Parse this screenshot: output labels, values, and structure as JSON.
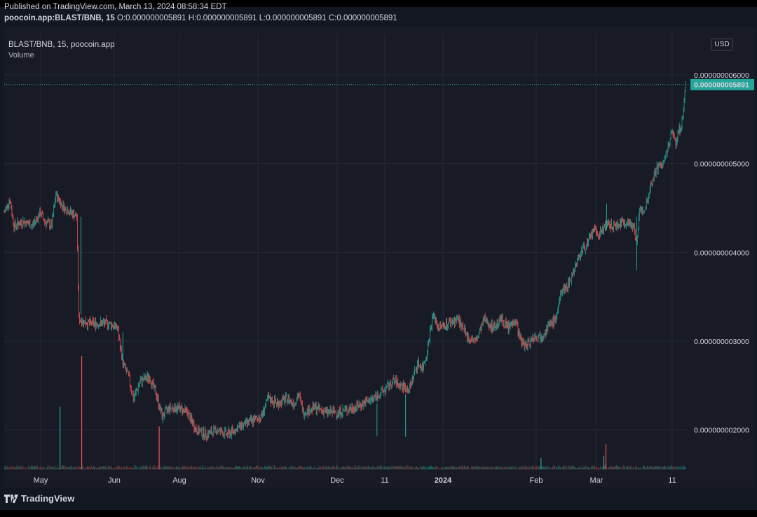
{
  "header": {
    "published": "Published on TradingView.com, March 13, 2024 08:58:34 EDT",
    "symbol": "poocoin.app:BLAST/BNB, 15",
    "ohlc": "O:0.000000005891 H:0.000000005891 L:0.000000005891 C:0.000000005891"
  },
  "legend": {
    "title": "BLAST/BNB, 15, poocoin.app",
    "volume": "Volume"
  },
  "currency": "USD",
  "branding": "TradingView",
  "colors": {
    "up": "#26a69a",
    "down": "#ef5350",
    "background": "#181b26",
    "grid": "#242838",
    "last_price": "#26a69a"
  },
  "chart_data": {
    "type": "candlestick",
    "series_name": "BLAST/BNB, 15",
    "last_price": 5.891e-09,
    "last_price_label": "0.000000005891",
    "y_ticks": [
      2e-09,
      3e-09,
      4e-09,
      5e-09,
      6e-09
    ],
    "y_tick_labels": [
      "0.000000002000",
      "0.000000003000",
      "0.000000004000",
      "0.000000005000",
      "0.000000006000"
    ],
    "x_ticks": [
      "May",
      "Jun",
      "Aug",
      "Nov",
      "Dec",
      "11",
      "2024",
      "Feb",
      "Mar",
      "11"
    ],
    "x_ticks_bold": [
      "2024"
    ],
    "y_range": [
      1.54e-09,
      6.37e-09
    ],
    "price_path": [
      {
        "i": 0,
        "v": 4.45e-09
      },
      {
        "i": 8,
        "v": 4.6e-09
      },
      {
        "i": 14,
        "v": 4.3e-09
      },
      {
        "i": 28,
        "v": 4.35e-09
      },
      {
        "i": 40,
        "v": 4.3e-09
      },
      {
        "i": 52,
        "v": 4.45e-09
      },
      {
        "i": 58,
        "v": 4.35e-09
      },
      {
        "i": 68,
        "v": 4.3e-09
      },
      {
        "i": 74,
        "v": 4.65e-09
      },
      {
        "i": 86,
        "v": 4.5e-09
      },
      {
        "i": 96,
        "v": 4.45e-09
      },
      {
        "i": 104,
        "v": 4.4e-09
      },
      {
        "i": 107,
        "v": 3.25e-09
      },
      {
        "i": 120,
        "v": 3.2e-09
      },
      {
        "i": 135,
        "v": 3.2e-09
      },
      {
        "i": 150,
        "v": 3.2e-09
      },
      {
        "i": 162,
        "v": 3.15e-09
      },
      {
        "i": 170,
        "v": 2.75e-09
      },
      {
        "i": 178,
        "v": 2.6e-09
      },
      {
        "i": 185,
        "v": 2.35e-09
      },
      {
        "i": 195,
        "v": 2.55e-09
      },
      {
        "i": 208,
        "v": 2.6e-09
      },
      {
        "i": 218,
        "v": 2.4e-09
      },
      {
        "i": 226,
        "v": 2.15e-09
      },
      {
        "i": 236,
        "v": 2.25e-09
      },
      {
        "i": 250,
        "v": 2.25e-09
      },
      {
        "i": 262,
        "v": 2.2e-09
      },
      {
        "i": 275,
        "v": 2e-09
      },
      {
        "i": 290,
        "v": 1.95e-09
      },
      {
        "i": 305,
        "v": 2e-09
      },
      {
        "i": 320,
        "v": 1.95e-09
      },
      {
        "i": 340,
        "v": 2.05e-09
      },
      {
        "i": 355,
        "v": 2.1e-09
      },
      {
        "i": 368,
        "v": 2.15e-09
      },
      {
        "i": 378,
        "v": 2.35e-09
      },
      {
        "i": 392,
        "v": 2.3e-09
      },
      {
        "i": 405,
        "v": 2.35e-09
      },
      {
        "i": 415,
        "v": 2.3e-09
      },
      {
        "i": 422,
        "v": 2.4e-09
      },
      {
        "i": 428,
        "v": 2.2e-09
      },
      {
        "i": 445,
        "v": 2.25e-09
      },
      {
        "i": 462,
        "v": 2.2e-09
      },
      {
        "i": 480,
        "v": 2.2e-09
      },
      {
        "i": 500,
        "v": 2.25e-09
      },
      {
        "i": 515,
        "v": 2.3e-09
      },
      {
        "i": 528,
        "v": 2.35e-09
      },
      {
        "i": 545,
        "v": 2.45e-09
      },
      {
        "i": 558,
        "v": 2.55e-09
      },
      {
        "i": 568,
        "v": 2.5e-09
      },
      {
        "i": 580,
        "v": 2.45e-09
      },
      {
        "i": 592,
        "v": 2.75e-09
      },
      {
        "i": 600,
        "v": 2.7e-09
      },
      {
        "i": 606,
        "v": 2.9e-09
      },
      {
        "i": 614,
        "v": 3.3e-09
      },
      {
        "i": 622,
        "v": 3.15e-09
      },
      {
        "i": 635,
        "v": 3.2e-09
      },
      {
        "i": 650,
        "v": 3.25e-09
      },
      {
        "i": 662,
        "v": 3.05e-09
      },
      {
        "i": 676,
        "v": 3e-09
      },
      {
        "i": 688,
        "v": 3.25e-09
      },
      {
        "i": 700,
        "v": 3.15e-09
      },
      {
        "i": 712,
        "v": 3.25e-09
      },
      {
        "i": 722,
        "v": 3.15e-09
      },
      {
        "i": 732,
        "v": 3.25e-09
      },
      {
        "i": 740,
        "v": 3e-09
      },
      {
        "i": 748,
        "v": 2.95e-09
      },
      {
        "i": 758,
        "v": 3.05e-09
      },
      {
        "i": 768,
        "v": 3.05e-09
      },
      {
        "i": 778,
        "v": 3.15e-09
      },
      {
        "i": 790,
        "v": 3.25e-09
      },
      {
        "i": 800,
        "v": 3.6e-09
      },
      {
        "i": 806,
        "v": 3.6e-09
      },
      {
        "i": 816,
        "v": 3.8e-09
      },
      {
        "i": 826,
        "v": 4e-09
      },
      {
        "i": 836,
        "v": 4.1e-09
      },
      {
        "i": 844,
        "v": 4.25e-09
      },
      {
        "i": 852,
        "v": 4.2e-09
      },
      {
        "i": 860,
        "v": 4.3e-09
      },
      {
        "i": 875,
        "v": 4.3e-09
      },
      {
        "i": 890,
        "v": 4.35e-09
      },
      {
        "i": 902,
        "v": 4.3e-09
      },
      {
        "i": 906,
        "v": 4.1e-09
      },
      {
        "i": 910,
        "v": 4.45e-09
      },
      {
        "i": 918,
        "v": 4.5e-09
      },
      {
        "i": 926,
        "v": 4.75e-09
      },
      {
        "i": 934,
        "v": 4.95e-09
      },
      {
        "i": 944,
        "v": 5e-09
      },
      {
        "i": 950,
        "v": 5.15e-09
      },
      {
        "i": 956,
        "v": 5.35e-09
      },
      {
        "i": 962,
        "v": 5.25e-09
      },
      {
        "i": 968,
        "v": 5.4e-09
      },
      {
        "i": 972,
        "v": 5.5e-09
      },
      {
        "i": 976,
        "v": 5.891e-09
      }
    ],
    "spikes": [
      {
        "i": 110,
        "low": 3.3e-09,
        "high": 4.4e-09
      },
      {
        "i": 170,
        "low": 2.7e-09,
        "high": 3.1e-09
      },
      {
        "i": 534,
        "low": 1.93e-09,
        "high": 2.3e-09
      },
      {
        "i": 575,
        "low": 1.92e-09,
        "high": 2.4e-09
      },
      {
        "i": 863,
        "low": 4.25e-09,
        "high": 4.55e-09
      },
      {
        "i": 906,
        "low": 3.8e-09,
        "high": 4.4e-09
      }
    ],
    "volume": [
      {
        "i": 80,
        "v": 0.55,
        "dir": "up"
      },
      {
        "i": 111,
        "v": 1.0,
        "dir": "down"
      },
      {
        "i": 222,
        "v": 0.38,
        "dir": "down"
      },
      {
        "i": 859,
        "v": 0.12,
        "dir": "up"
      },
      {
        "i": 862,
        "v": 0.22,
        "dir": "down"
      },
      {
        "i": 769,
        "v": 0.1,
        "dir": "up"
      }
    ]
  }
}
